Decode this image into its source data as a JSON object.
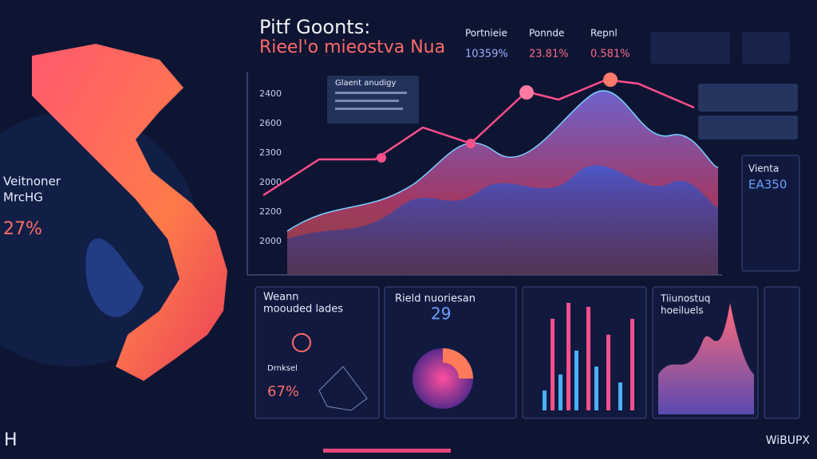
{
  "header": {
    "title": "Pitf Goonts:",
    "subtitle": "Rieel'o mieostva Nua"
  },
  "stats": [
    {
      "label": "Portnieie",
      "value": "10359%"
    },
    {
      "label": "Ponnde",
      "value": "23.81%"
    },
    {
      "label": "Repnl",
      "value": "0.581%"
    }
  ],
  "map": {
    "label": "Veitnoner",
    "sub": "MrcHG",
    "value": "27%"
  },
  "chart": {
    "panel_title": "Glaent anudigy",
    "y_labels": [
      "2400",
      "2600",
      "2300",
      "2000",
      "2200",
      "2000"
    ]
  },
  "panels": {
    "left": {
      "title": "Weann",
      "subtitle": "moouded lades",
      "sub_title": "Drnksel",
      "value": "67%"
    },
    "mid": {
      "title": "Rield nuoriesan",
      "value": "29"
    },
    "right": {
      "title": "Tiiunostuq",
      "subtitle": "hoeiluels"
    }
  },
  "side": {
    "title": "Vienta",
    "value": "EA350"
  },
  "footer": {
    "logo": "H",
    "brand": "WiBUPX"
  }
}
